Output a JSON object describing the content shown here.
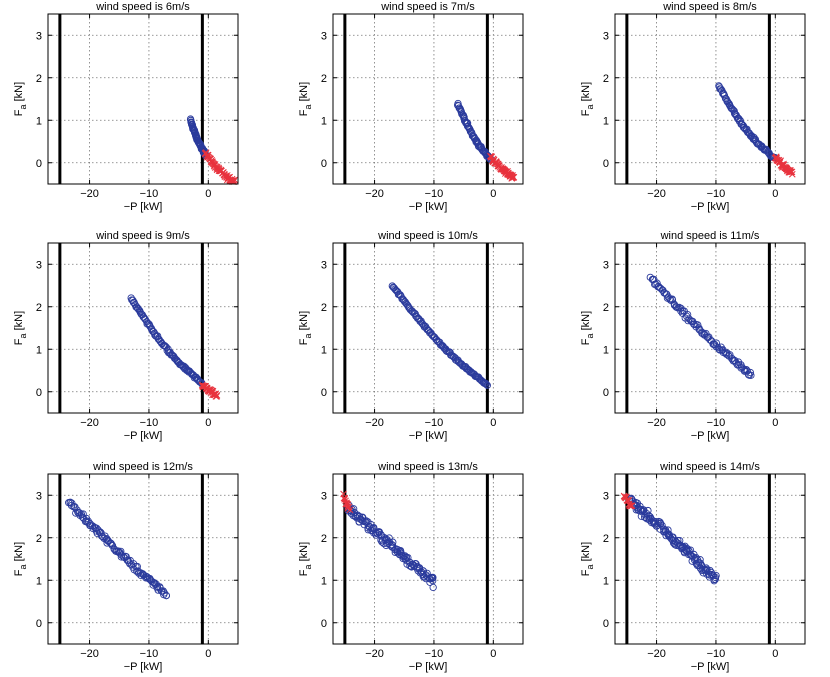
{
  "chart_data": [
    {
      "type": "scatter",
      "title": "wind speed is 6m/s",
      "xlabel": "−P [kW]",
      "ylabel": "F_a [kN]",
      "xlim": [
        -27,
        5
      ],
      "ylim": [
        -0.5,
        3.5
      ],
      "xticks": [
        -20,
        -10,
        0
      ],
      "yticks": [
        0,
        1,
        2,
        3
      ],
      "grid": true,
      "vlines": [
        -25,
        -1
      ],
      "series": [
        {
          "name": "blue circles",
          "color": "#2b3b9c",
          "marker": "circle",
          "segment": {
            "x0": -3,
            "y0": 1.0,
            "x1": -0.5,
            "y1": 0.2,
            "n": 60,
            "curve": 0.1,
            "noise": 0.04
          }
        },
        {
          "name": "red crosses",
          "color": "#e8333e",
          "marker": "x",
          "segment": {
            "x0": -0.5,
            "y0": 0.25,
            "x1": 4.5,
            "y1": -0.45,
            "n": 70,
            "curve": 0.15,
            "noise": 0.06
          }
        }
      ]
    },
    {
      "type": "scatter",
      "title": "wind speed is 7m/s",
      "xlabel": "−P [kW]",
      "ylabel": "F_a [kN]",
      "xlim": [
        -27,
        5
      ],
      "ylim": [
        -0.5,
        3.5
      ],
      "xticks": [
        -20,
        -10,
        0
      ],
      "yticks": [
        0,
        1,
        2,
        3
      ],
      "grid": true,
      "vlines": [
        -25,
        -1
      ],
      "series": [
        {
          "name": "blue circles",
          "color": "#2b3b9c",
          "marker": "circle",
          "segment": {
            "x0": -6,
            "y0": 1.4,
            "x1": -0.5,
            "y1": 0.1,
            "n": 70,
            "curve": 0.12,
            "noise": 0.04
          }
        },
        {
          "name": "red crosses",
          "color": "#e8333e",
          "marker": "x",
          "segment": {
            "x0": -0.5,
            "y0": 0.15,
            "x1": 3.5,
            "y1": -0.35,
            "n": 60,
            "curve": 0.1,
            "noise": 0.06
          }
        }
      ]
    },
    {
      "type": "scatter",
      "title": "wind speed is 8m/s",
      "xlabel": "−P [kW]",
      "ylabel": "F_a [kN]",
      "xlim": [
        -27,
        5
      ],
      "ylim": [
        -0.5,
        3.5
      ],
      "xticks": [
        -20,
        -10,
        0
      ],
      "yticks": [
        0,
        1,
        2,
        3
      ],
      "grid": true,
      "vlines": [
        -25,
        -1
      ],
      "series": [
        {
          "name": "blue circles",
          "color": "#2b3b9c",
          "marker": "circle",
          "segment": {
            "x0": -9.5,
            "y0": 1.8,
            "x1": 0,
            "y1": 0.1,
            "n": 80,
            "curve": 0.12,
            "noise": 0.04
          }
        },
        {
          "name": "red crosses",
          "color": "#e8333e",
          "marker": "x",
          "segment": {
            "x0": 0,
            "y0": 0.12,
            "x1": 2.8,
            "y1": -0.25,
            "n": 45,
            "curve": 0.05,
            "noise": 0.06
          }
        }
      ]
    },
    {
      "type": "scatter",
      "title": "wind speed is 9m/s",
      "xlabel": "−P [kW]",
      "ylabel": "F_a [kN]",
      "xlim": [
        -27,
        5
      ],
      "ylim": [
        -0.5,
        3.5
      ],
      "xticks": [
        -20,
        -10,
        0
      ],
      "yticks": [
        0,
        1,
        2,
        3
      ],
      "grid": true,
      "vlines": [
        -25,
        -1
      ],
      "series": [
        {
          "name": "blue circles",
          "color": "#2b3b9c",
          "marker": "circle",
          "segment": {
            "x0": -13,
            "y0": 2.2,
            "x1": -1,
            "y1": 0.2,
            "n": 90,
            "curve": 0.1,
            "noise": 0.04
          }
        },
        {
          "name": "red crosses",
          "color": "#e8333e",
          "marker": "x",
          "segment": {
            "x0": -1,
            "y0": 0.15,
            "x1": 1.5,
            "y1": -0.1,
            "n": 35,
            "curve": 0.0,
            "noise": 0.06
          }
        }
      ]
    },
    {
      "type": "scatter",
      "title": "wind speed is 10m/s",
      "xlabel": "−P [kW]",
      "ylabel": "F_a [kN]",
      "xlim": [
        -27,
        5
      ],
      "ylim": [
        -0.5,
        3.5
      ],
      "xticks": [
        -20,
        -10,
        0
      ],
      "yticks": [
        0,
        1,
        2,
        3
      ],
      "grid": true,
      "vlines": [
        -25,
        -1
      ],
      "series": [
        {
          "name": "blue circles",
          "color": "#2b3b9c",
          "marker": "circle",
          "segment": {
            "x0": -17,
            "y0": 2.5,
            "x1": -1,
            "y1": 0.15,
            "n": 110,
            "curve": 0.08,
            "noise": 0.03
          }
        }
      ]
    },
    {
      "type": "scatter",
      "title": "wind speed is 11m/s",
      "xlabel": "−P [kW]",
      "ylabel": "F_a [kN]",
      "xlim": [
        -27,
        5
      ],
      "ylim": [
        -0.5,
        3.5
      ],
      "xticks": [
        -20,
        -10,
        0
      ],
      "yticks": [
        0,
        1,
        2,
        3
      ],
      "grid": true,
      "vlines": [
        -25,
        -1
      ],
      "series": [
        {
          "name": "blue circles",
          "color": "#2b3b9c",
          "marker": "circle",
          "segment": {
            "x0": -21,
            "y0": 2.7,
            "x1": -4,
            "y1": 0.4,
            "n": 100,
            "curve": 0.05,
            "noise": 0.07
          }
        }
      ]
    },
    {
      "type": "scatter",
      "title": "wind speed is 12m/s",
      "xlabel": "−P [kW]",
      "ylabel": "F_a [kN]",
      "xlim": [
        -27,
        5
      ],
      "ylim": [
        -0.5,
        3.5
      ],
      "xticks": [
        -20,
        -10,
        0
      ],
      "yticks": [
        0,
        1,
        2,
        3
      ],
      "grid": true,
      "vlines": [
        -25,
        -1
      ],
      "series": [
        {
          "name": "blue circles",
          "color": "#2b3b9c",
          "marker": "circle",
          "segment": {
            "x0": -23.5,
            "y0": 2.85,
            "x1": -7,
            "y1": 0.65,
            "n": 110,
            "curve": 0.03,
            "noise": 0.09
          }
        }
      ]
    },
    {
      "type": "scatter",
      "title": "wind speed is 13m/s",
      "xlabel": "−P [kW]",
      "ylabel": "F_a [kN]",
      "xlim": [
        -27,
        5
      ],
      "ylim": [
        -0.5,
        3.5
      ],
      "xticks": [
        -20,
        -10,
        0
      ],
      "yticks": [
        0,
        1,
        2,
        3
      ],
      "grid": true,
      "vlines": [
        -25,
        -1
      ],
      "series": [
        {
          "name": "blue circles",
          "color": "#2b3b9c",
          "marker": "circle",
          "segment": {
            "x0": -24.5,
            "y0": 2.7,
            "x1": -10,
            "y1": 0.95,
            "n": 130,
            "curve": 0.0,
            "noise": 0.13
          }
        },
        {
          "name": "red crosses",
          "color": "#e8333e",
          "marker": "x",
          "segment": {
            "x0": -25.2,
            "y0": 2.95,
            "x1": -24.3,
            "y1": 2.65,
            "n": 14,
            "curve": 0.0,
            "noise": 0.08
          }
        }
      ]
    },
    {
      "type": "scatter",
      "title": "wind speed is 14m/s",
      "xlabel": "−P [kW]",
      "ylabel": "F_a [kN]",
      "xlim": [
        -27,
        5
      ],
      "ylim": [
        -0.5,
        3.5
      ],
      "xticks": [
        -20,
        -10,
        0
      ],
      "yticks": [
        0,
        1,
        2,
        3
      ],
      "grid": true,
      "vlines": [
        -25,
        -1
      ],
      "series": [
        {
          "name": "blue circles",
          "color": "#2b3b9c",
          "marker": "circle",
          "segment": {
            "x0": -24.5,
            "y0": 2.9,
            "x1": -10,
            "y1": 1.05,
            "n": 140,
            "curve": 0.0,
            "noise": 0.13
          }
        },
        {
          "name": "red crosses",
          "color": "#e8333e",
          "marker": "x",
          "segment": {
            "x0": -25.5,
            "y0": 3.0,
            "x1": -24.2,
            "y1": 2.75,
            "n": 16,
            "curve": 0.0,
            "noise": 0.07
          }
        }
      ]
    }
  ]
}
